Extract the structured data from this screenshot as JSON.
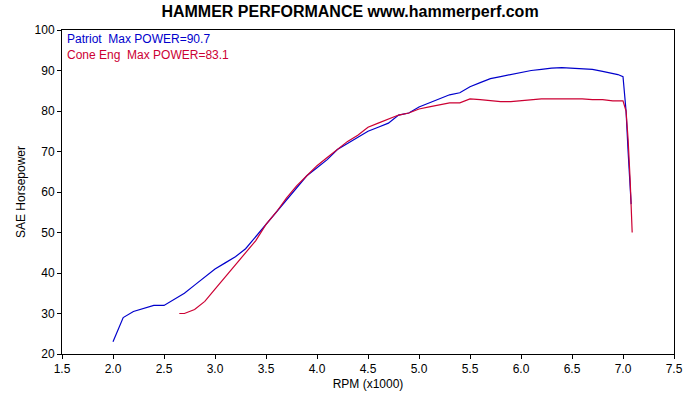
{
  "chart_data": {
    "type": "line",
    "title": "HAMMER PERFORMANCE www.hammerperf.com",
    "x_label": "RPM (x1000)",
    "y_label": "SAE Horsepower",
    "xlim": [
      1.5,
      7.5
    ],
    "xticks": [
      1.5,
      {
        "value": 2,
        "label": "2.0"
      },
      2.5,
      {
        "value": 3,
        "label": "3.0"
      },
      3.5,
      {
        "value": 4,
        "label": "4.0"
      },
      4.5,
      {
        "value": 5,
        "label": "5.0"
      },
      5.5,
      {
        "value": 6,
        "label": "6.0"
      },
      6.5,
      {
        "value": 7,
        "label": "7.0"
      },
      7.5
    ],
    "ylim": [
      20,
      100
    ],
    "yticks": [
      20,
      30,
      40,
      50,
      60,
      70,
      80,
      90,
      100
    ],
    "grid": false,
    "legend": "upper left",
    "series": [
      {
        "name": "Patriot  Max POWER=90.7",
        "color": "#0000cc",
        "x": [
          2.0,
          2.05,
          2.1,
          2.2,
          2.3,
          2.4,
          2.5,
          2.6,
          2.7,
          2.8,
          2.9,
          3.0,
          3.1,
          3.2,
          3.3,
          3.4,
          3.5,
          3.6,
          3.7,
          3.8,
          3.9,
          4.0,
          4.1,
          4.2,
          4.3,
          4.4,
          4.5,
          4.6,
          4.7,
          4.8,
          4.9,
          5.0,
          5.1,
          5.2,
          5.3,
          5.4,
          5.5,
          5.6,
          5.7,
          5.8,
          5.9,
          6.0,
          6.1,
          6.2,
          6.3,
          6.4,
          6.5,
          6.6,
          6.7,
          6.8,
          6.9,
          6.95,
          7.0,
          7.03,
          7.05,
          7.07,
          7.08
        ],
        "values": [
          23,
          26,
          29,
          30.5,
          31.3,
          32,
          32,
          33.5,
          35,
          37,
          39,
          41,
          42.5,
          44,
          46,
          49,
          52,
          55,
          58,
          61,
          64,
          66,
          68,
          70.5,
          72,
          73.5,
          75,
          76,
          77,
          79,
          79.5,
          81,
          82,
          83,
          84,
          84.5,
          86,
          87,
          88,
          88.5,
          89,
          89.5,
          90,
          90.3,
          90.6,
          90.7,
          90.6,
          90.5,
          90.3,
          89.8,
          89.2,
          89,
          88.5,
          80,
          70,
          62,
          57
        ]
      },
      {
        "name": "Cone Eng  Max POWER=83.1",
        "color": "#cc0033",
        "x": [
          2.65,
          2.7,
          2.8,
          2.9,
          3.0,
          3.1,
          3.2,
          3.3,
          3.4,
          3.5,
          3.6,
          3.7,
          3.8,
          3.9,
          4.0,
          4.1,
          4.2,
          4.3,
          4.4,
          4.5,
          4.6,
          4.7,
          4.8,
          4.9,
          5.0,
          5.1,
          5.2,
          5.3,
          5.4,
          5.5,
          5.6,
          5.7,
          5.8,
          5.9,
          6.0,
          6.1,
          6.2,
          6.3,
          6.4,
          6.5,
          6.6,
          6.7,
          6.8,
          6.9,
          7.0,
          7.03,
          7.05,
          7.07,
          7.08,
          7.09
        ],
        "values": [
          30,
          30,
          31,
          33,
          36,
          39,
          42,
          45,
          48,
          52,
          55,
          58.5,
          61.5,
          64,
          66.5,
          68.5,
          70.5,
          72.5,
          74,
          76,
          77,
          78,
          79,
          79.5,
          80.5,
          81,
          81.5,
          82,
          82,
          83,
          82.8,
          82.5,
          82.3,
          82.3,
          82.5,
          82.8,
          83,
          83,
          83,
          83.1,
          83,
          82.8,
          82.8,
          82.5,
          82.5,
          80,
          73,
          63,
          55,
          50
        ]
      }
    ]
  }
}
